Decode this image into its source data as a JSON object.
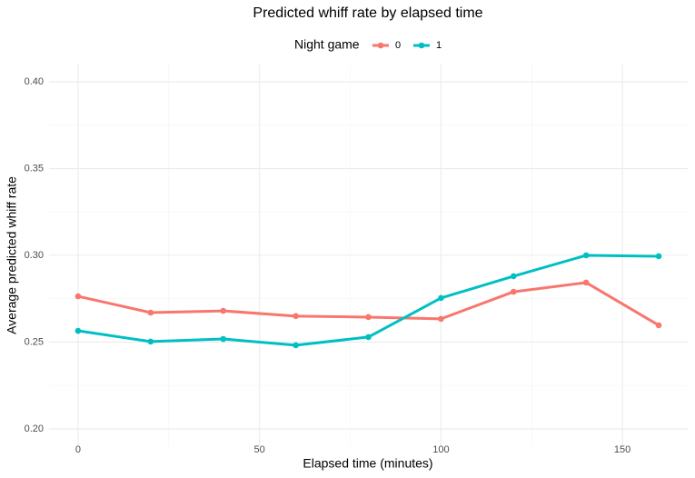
{
  "chart_data": {
    "type": "line",
    "title": "Predicted whiff rate by elapsed time",
    "x_label": "Elapsed time (minutes)",
    "y_label": "Average predicted whiff rate",
    "legend_title": "Night game",
    "legend_position": "top",
    "grid": true,
    "minor_grid": true,
    "x": [
      0,
      20,
      40,
      60,
      80,
      100,
      120,
      140,
      160
    ],
    "series": [
      {
        "name": "0",
        "color": "#F8766D",
        "values": [
          0.2764,
          0.267,
          0.268,
          0.265,
          0.2644,
          0.2634,
          0.279,
          0.2843,
          0.2597
        ]
      },
      {
        "name": "1",
        "color": "#00BFC4",
        "values": [
          0.2565,
          0.2503,
          0.2518,
          0.2482,
          0.2529,
          0.2754,
          0.288,
          0.3,
          0.2995
        ]
      }
    ],
    "xlim": [
      -8,
      168
    ],
    "xticks": [
      0,
      50,
      100,
      150
    ],
    "ylim": [
      0.19,
      0.41
    ],
    "yticks": [
      {
        "value": 0.2,
        "label": "0.20"
      },
      {
        "value": 0.25,
        "label": "0.25"
      },
      {
        "value": 0.3,
        "label": "0.30"
      },
      {
        "value": 0.35,
        "label": "0.35"
      },
      {
        "value": 0.4,
        "label": "0.40"
      }
    ]
  }
}
